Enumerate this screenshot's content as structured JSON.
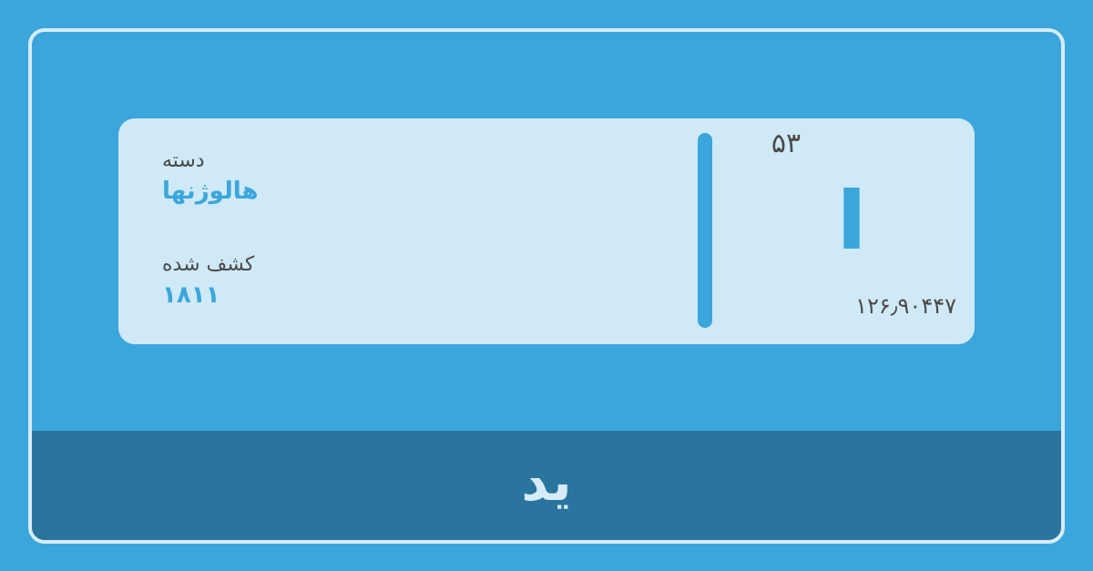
{
  "element": {
    "atomic_number": "۵۳",
    "symbol": "I",
    "atomic_mass": "۱۲۶٫۹۰۴۴۷",
    "name": "ید"
  },
  "info": {
    "category_label": "دسته",
    "category_value": "هالوژنها",
    "discovered_label": "کشف شده",
    "discovered_value": "۱۸۱۱"
  },
  "colors": {
    "background": "#3ba6dc",
    "card": "#cfe9f6",
    "footer": "#2a759e",
    "accent": "#3ba6dc",
    "text": "#4a4a4a"
  }
}
